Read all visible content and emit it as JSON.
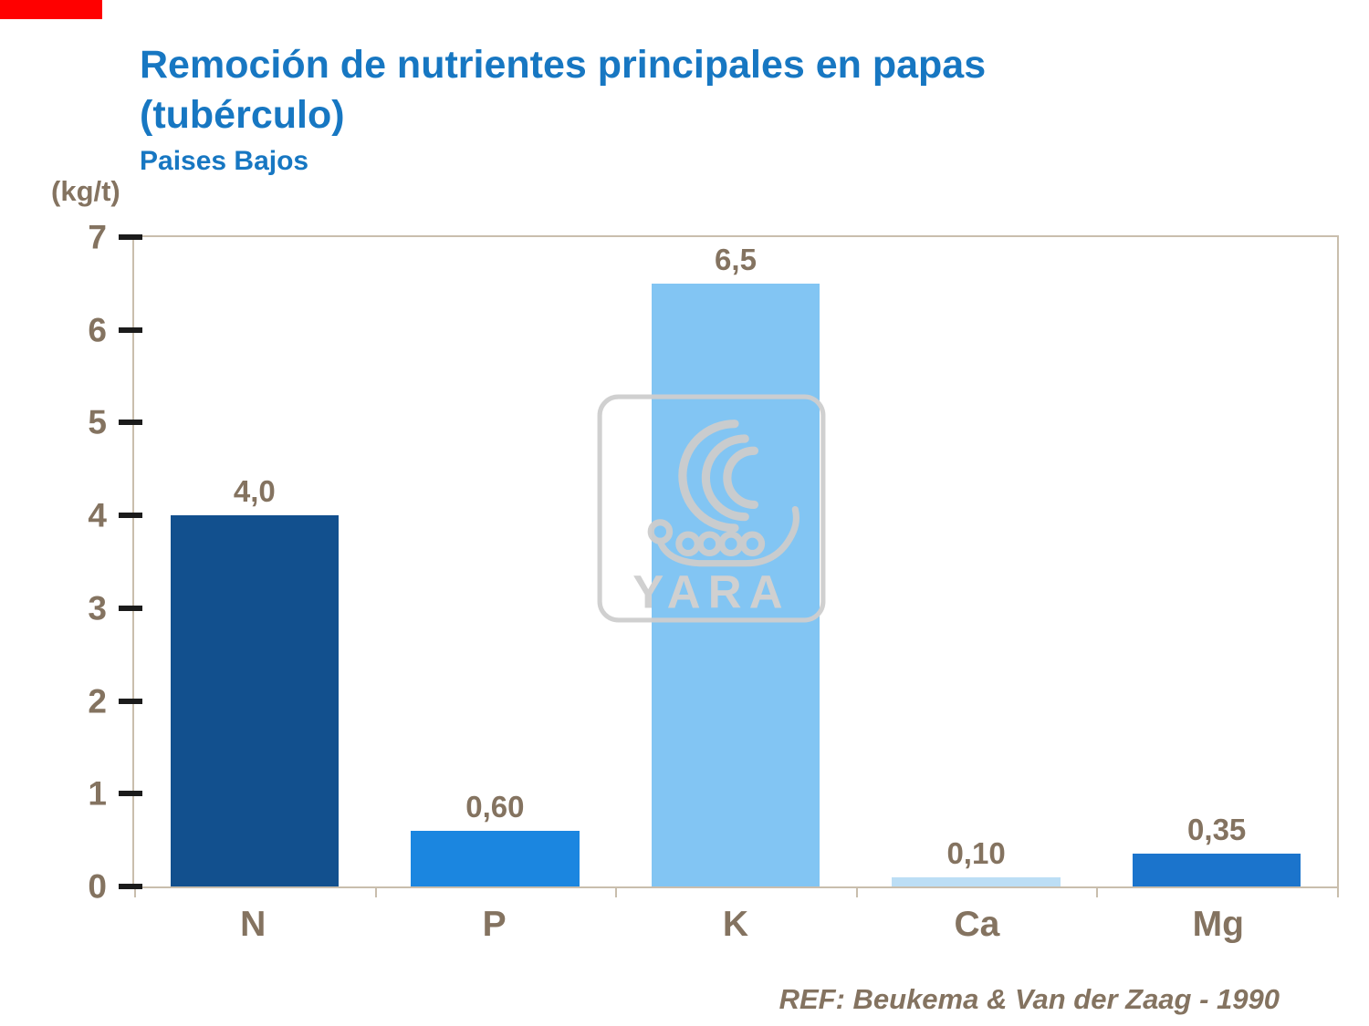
{
  "slide": {
    "title_line1": "Remoción de nutrientes principales en papas",
    "title_line2": "(tubérculo)",
    "subtitle": "Paises Bajos",
    "unit_label": "(kg/t)",
    "reference": "REF: Beukema & Van der Zaag - 1990",
    "accent_red": "#FF0000",
    "title_color": "#1777C2",
    "text_color": "#847360"
  },
  "watermark": {
    "text": "YARA",
    "icon": "yara-viking-ship-logo",
    "color": "#CDCDCD"
  },
  "chart_data": {
    "type": "bar",
    "title": "Remoción de nutrientes principales en papas (tubérculo) - Paises Bajos",
    "categories": [
      "N",
      "P",
      "K",
      "Ca",
      "Mg"
    ],
    "values": [
      4.0,
      0.6,
      6.5,
      0.1,
      0.35
    ],
    "value_labels": [
      "4,0",
      "0,60",
      "6,5",
      "0,10",
      "0,35"
    ],
    "colors": [
      "#12508E",
      "#1B86E0",
      "#82C5F3",
      "#BCDEF5",
      "#1B74CC"
    ],
    "xlabel": "",
    "ylabel": "(kg/t)",
    "ylim": [
      0,
      7
    ],
    "ytick_step": 1,
    "grid": false,
    "legend": false
  }
}
